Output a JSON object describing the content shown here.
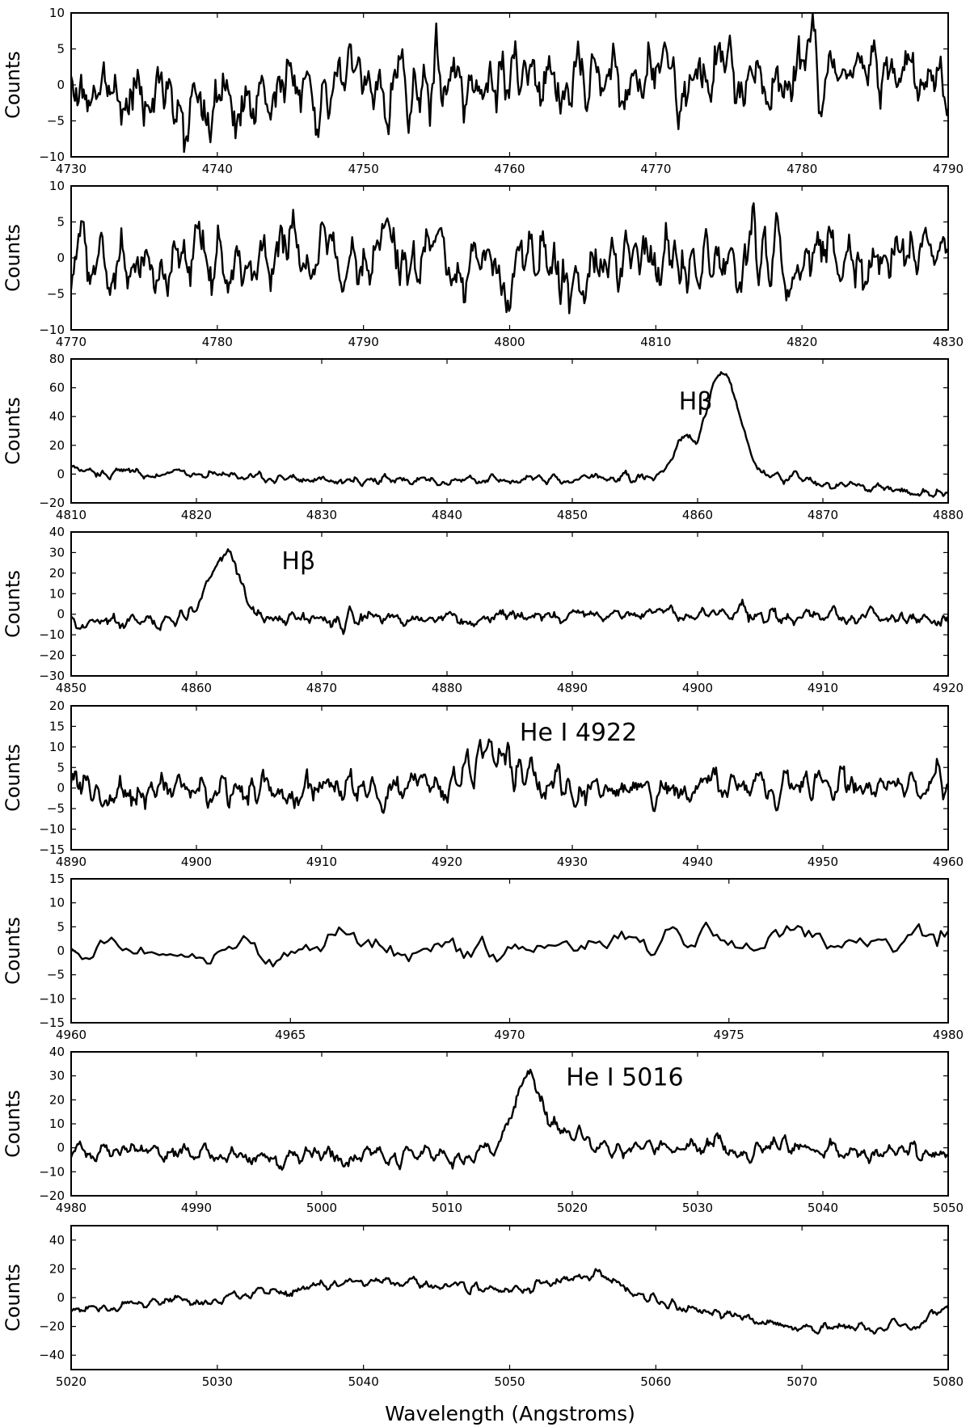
{
  "figure": {
    "xlabel": "Wavelength (Angstroms)"
  },
  "chart_data": [
    {
      "type": "line",
      "ylabel": "Counts",
      "xlim": [
        4730,
        4790
      ],
      "ylim": [
        -10,
        10
      ],
      "xticks": [
        4730,
        4740,
        4750,
        4760,
        4770,
        4780,
        4790
      ],
      "yticks": [
        -10,
        -5,
        0,
        5,
        10
      ],
      "baseline": [
        [
          4730,
          -1
        ],
        [
          4750,
          -0.5
        ],
        [
          4770,
          1
        ],
        [
          4790,
          2
        ]
      ],
      "features": [],
      "noise": 2.6,
      "seed": 11,
      "annotations": []
    },
    {
      "type": "line",
      "ylabel": "Counts",
      "xlim": [
        4770,
        4830
      ],
      "ylim": [
        -10,
        10
      ],
      "xticks": [
        4770,
        4780,
        4790,
        4800,
        4810,
        4820,
        4830
      ],
      "yticks": [
        -10,
        -5,
        0,
        5,
        10
      ],
      "baseline": [
        [
          4770,
          -0.5
        ],
        [
          4800,
          0
        ],
        [
          4830,
          0
        ]
      ],
      "features": [],
      "noise": 2.6,
      "seed": 23,
      "annotations": []
    },
    {
      "type": "line",
      "ylabel": "Counts",
      "xlim": [
        4810,
        4880
      ],
      "ylim": [
        -20,
        80
      ],
      "xticks": [
        4810,
        4820,
        4830,
        4840,
        4850,
        4860,
        4870,
        4880
      ],
      "yticks": [
        -20,
        0,
        20,
        40,
        60,
        80
      ],
      "baseline": [
        [
          4810,
          3
        ],
        [
          4820,
          -1
        ],
        [
          4830,
          -4
        ],
        [
          4840,
          -5
        ],
        [
          4850,
          -3
        ],
        [
          4856,
          0
        ],
        [
          4866,
          0
        ],
        [
          4870,
          -7
        ],
        [
          4880,
          -14
        ]
      ],
      "features": [
        [
          4858.8,
          22,
          0.7
        ],
        [
          4862.0,
          70,
          1.3
        ]
      ],
      "noise": 1.8,
      "seed": 37,
      "annotations": [
        {
          "text": "Hβ",
          "x": 4858.5,
          "y": 45
        }
      ]
    },
    {
      "type": "line",
      "ylabel": "Counts",
      "xlim": [
        4850,
        4920
      ],
      "ylim": [
        -30,
        40
      ],
      "xticks": [
        4850,
        4860,
        4870,
        4880,
        4890,
        4900,
        4910,
        4920
      ],
      "yticks": [
        -30,
        -20,
        -10,
        0,
        10,
        20,
        30,
        40
      ],
      "baseline": [
        [
          4850,
          -4
        ],
        [
          4858,
          -3
        ],
        [
          4866,
          -3
        ],
        [
          4880,
          -2
        ],
        [
          4900,
          1
        ],
        [
          4920,
          -2
        ]
      ],
      "features": [
        [
          4862.3,
          33,
          1.2
        ]
      ],
      "noise": 1.9,
      "seed": 41,
      "annotations": [
        {
          "text": "Hβ",
          "x": 4866.8,
          "y": 22
        }
      ]
    },
    {
      "type": "line",
      "ylabel": "Counts",
      "xlim": [
        4890,
        4960
      ],
      "ylim": [
        -15,
        20
      ],
      "xticks": [
        4890,
        4900,
        4910,
        4920,
        4930,
        4940,
        4950,
        4960
      ],
      "yticks": [
        -15,
        -10,
        -5,
        0,
        5,
        10,
        15,
        20
      ],
      "baseline": [
        [
          4890,
          0
        ],
        [
          4920,
          -1
        ],
        [
          4928,
          0
        ],
        [
          4960,
          1
        ]
      ],
      "features": [
        [
          4923.5,
          10,
          1.8
        ]
      ],
      "noise": 2.2,
      "seed": 53,
      "annotations": [
        {
          "text": "He I 4922",
          "x": 4925.8,
          "y": 11.5
        }
      ]
    },
    {
      "type": "line",
      "ylabel": "Counts",
      "xlim": [
        4960,
        4980
      ],
      "ylim": [
        -15,
        15
      ],
      "xticks": [
        4960,
        4965,
        4970,
        4975,
        4980
      ],
      "yticks": [
        -15,
        -10,
        -5,
        0,
        5,
        10,
        15
      ],
      "baseline": [
        [
          4960,
          0
        ],
        [
          4970,
          0
        ],
        [
          4972,
          2.5
        ],
        [
          4976,
          3.5
        ],
        [
          4980,
          1
        ]
      ],
      "features": [],
      "noise": 1.6,
      "seed": 67,
      "annotations": []
    },
    {
      "type": "line",
      "ylabel": "Counts",
      "xlim": [
        4980,
        5050
      ],
      "ylim": [
        -20,
        40
      ],
      "xticks": [
        4980,
        4990,
        5000,
        5010,
        5020,
        5030,
        5040,
        5050
      ],
      "yticks": [
        -20,
        -10,
        0,
        10,
        20,
        30,
        40
      ],
      "baseline": [
        [
          4980,
          0
        ],
        [
          4995,
          -4
        ],
        [
          5012,
          -3
        ],
        [
          5020,
          0
        ],
        [
          5030,
          0
        ],
        [
          5050,
          -2
        ]
      ],
      "features": [
        [
          5016.3,
          30,
          1.2
        ],
        [
          5019.5,
          7,
          1.2
        ]
      ],
      "noise": 2.1,
      "seed": 79,
      "annotations": [
        {
          "text": "He I 5016",
          "x": 5019.5,
          "y": 26
        }
      ]
    },
    {
      "type": "line",
      "ylabel": "Counts",
      "xlim": [
        5020,
        5080
      ],
      "ylim": [
        -50,
        50
      ],
      "xticks": [
        5020,
        5030,
        5040,
        5050,
        5060,
        5070,
        5080
      ],
      "yticks": [
        -40,
        -20,
        0,
        20,
        40
      ],
      "baseline": [
        [
          5020,
          -9
        ],
        [
          5030,
          0
        ],
        [
          5040,
          12
        ],
        [
          5050,
          6
        ],
        [
          5056,
          16
        ],
        [
          5060,
          -3
        ],
        [
          5070,
          -22
        ],
        [
          5078,
          -20
        ],
        [
          5080,
          -6
        ]
      ],
      "features": [],
      "noise": 1.9,
      "seed": 97,
      "annotations": []
    }
  ]
}
